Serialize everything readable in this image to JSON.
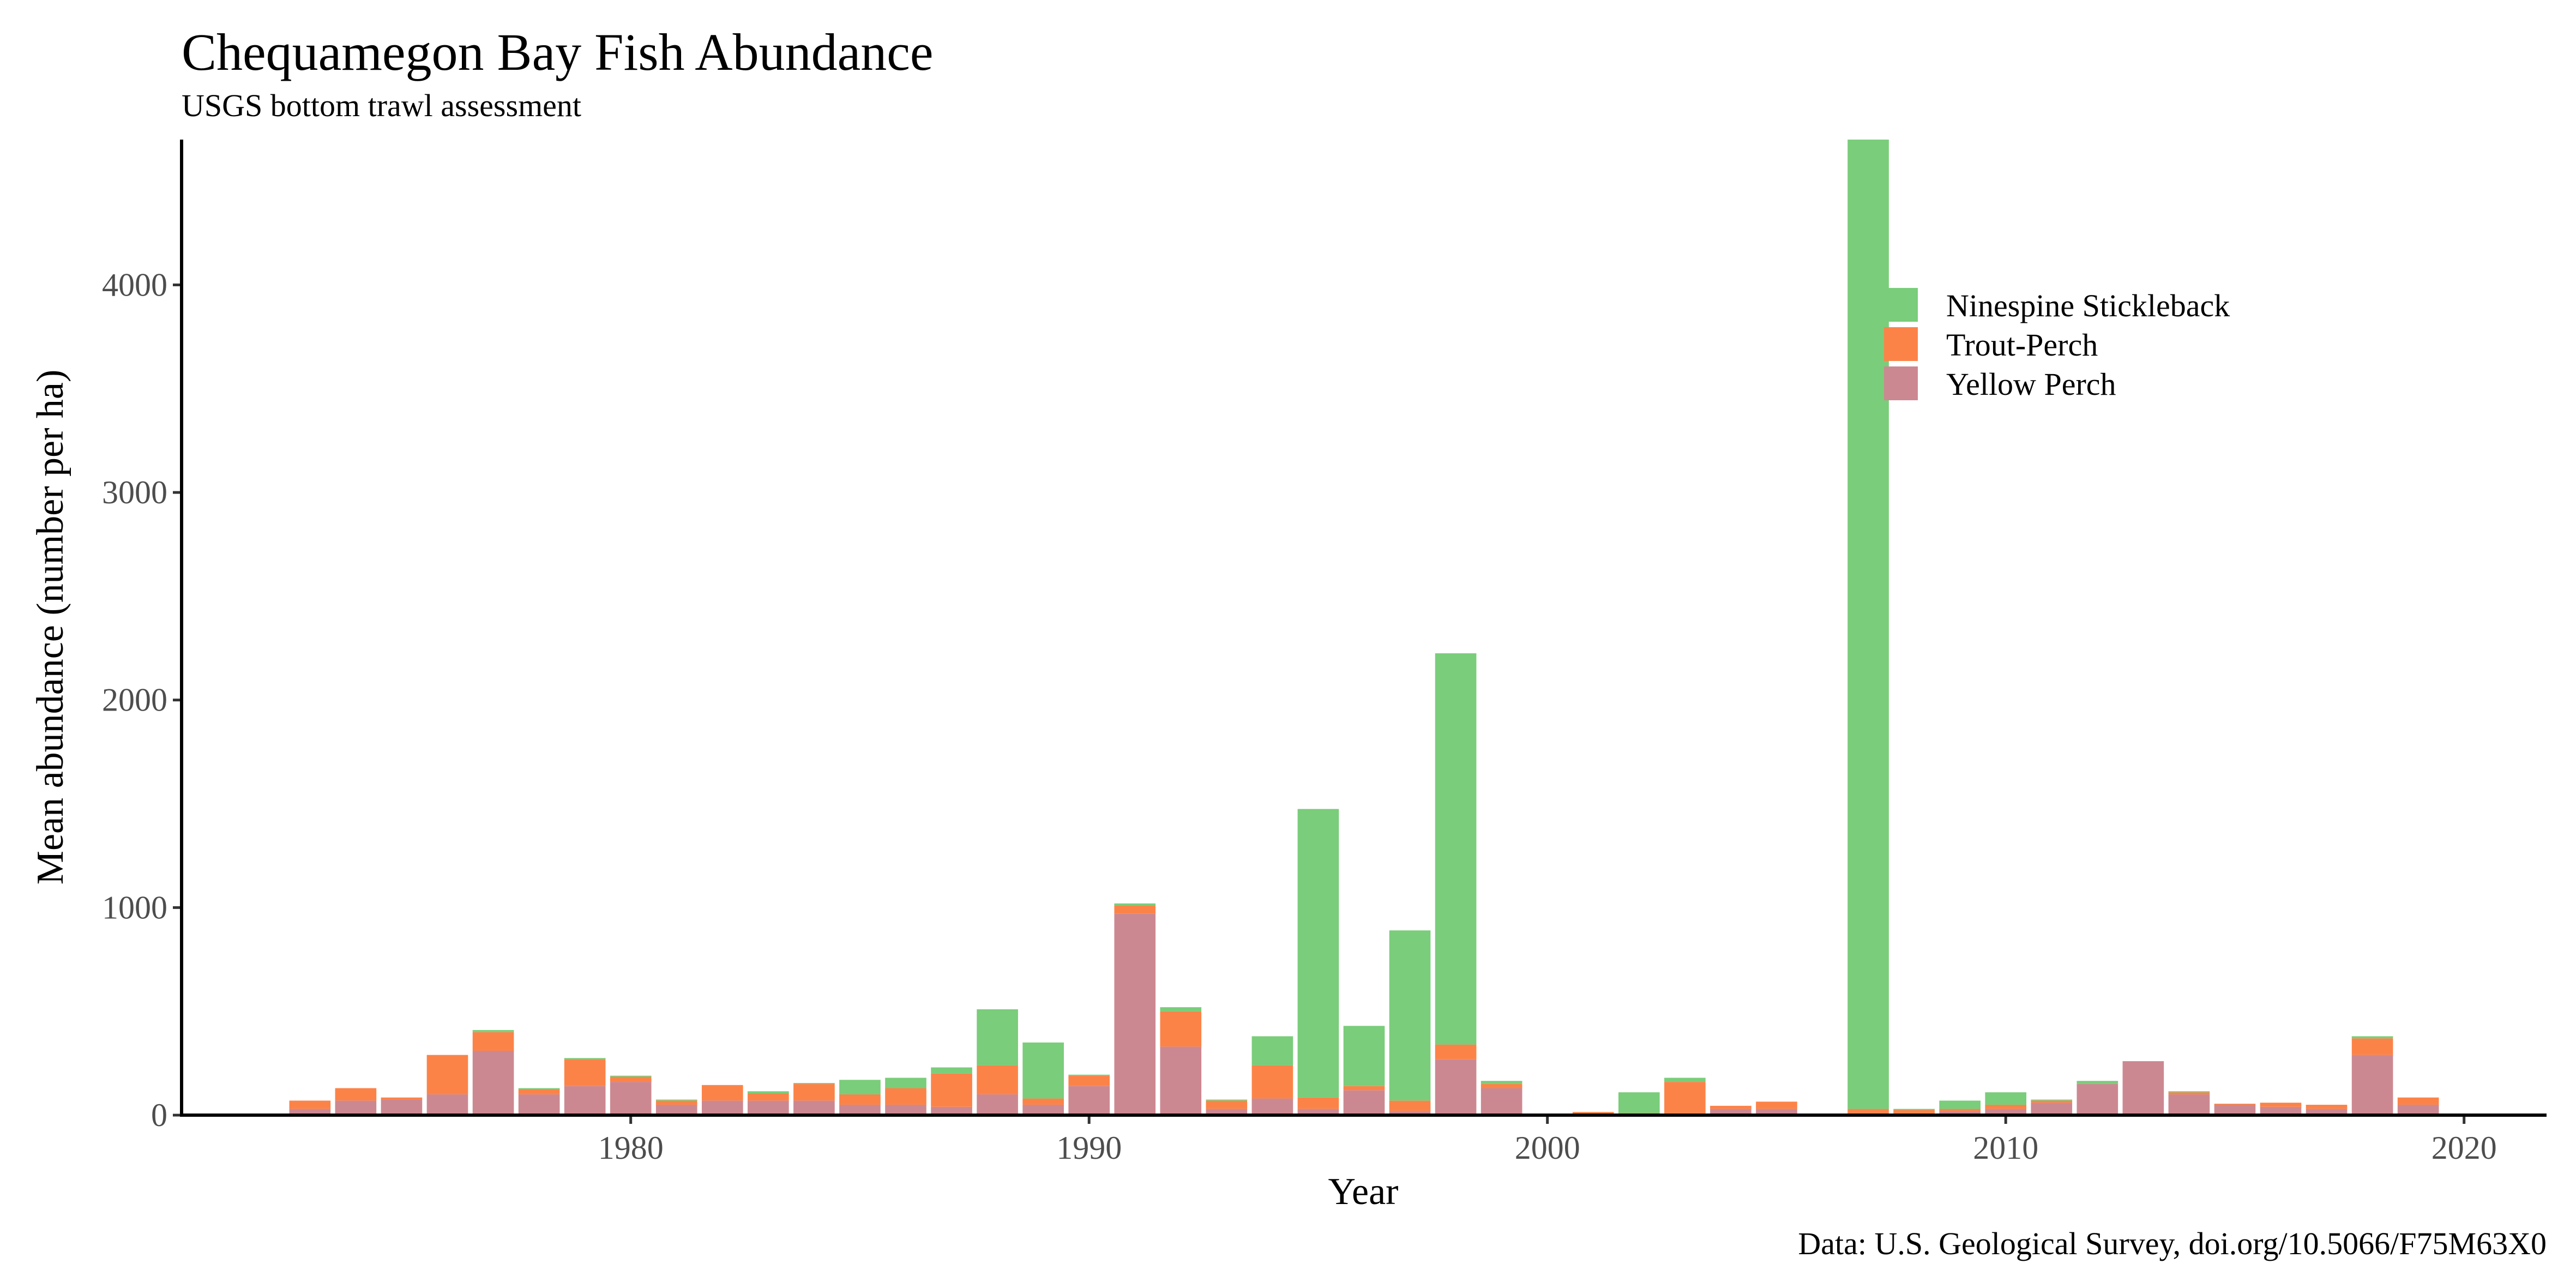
{
  "chart_data": {
    "type": "bar",
    "stacked": true,
    "title": "Chequamegon Bay Fish Abundance",
    "subtitle": "USGS bottom trawl assessment",
    "xlabel": "Year",
    "ylabel": "Mean abundance (number per ha)",
    "caption": "Data: U.S. Geological Survey, doi.org/10.5066/F75M63X0",
    "xlim": [
      1970.2,
      2021.8
    ],
    "ylim": [
      0,
      4700
    ],
    "xticks": [
      1980,
      1990,
      2000,
      2010,
      2020
    ],
    "yticks": [
      0,
      1000,
      2000,
      3000,
      4000
    ],
    "grid": false,
    "legend_position": "top-right",
    "x": [
      1973,
      1974,
      1975,
      1976,
      1977,
      1978,
      1979,
      1980,
      1981,
      1982,
      1983,
      1984,
      1985,
      1986,
      1987,
      1988,
      1989,
      1990,
      1991,
      1992,
      1993,
      1994,
      1995,
      1996,
      1997,
      1998,
      1999,
      2001,
      2002,
      2003,
      2004,
      2005,
      2007,
      2008,
      2009,
      2010,
      2011,
      2012,
      2013,
      2014,
      2015,
      2016,
      2017,
      2018,
      2019
    ],
    "series": [
      {
        "name": "Yellow Perch",
        "color": "#CC8891",
        "values": [
          30,
          70,
          75,
          100,
          310,
          100,
          140,
          160,
          50,
          70,
          70,
          70,
          50,
          50,
          40,
          100,
          50,
          140,
          970,
          330,
          30,
          80,
          30,
          120,
          20,
          270,
          130,
          3,
          5,
          10,
          30,
          30,
          10,
          10,
          20,
          30,
          60,
          150,
          260,
          100,
          50,
          40,
          30,
          290,
          50
        ]
      },
      {
        "name": "Trout-Perch",
        "color": "#FC8348",
        "values": [
          40,
          60,
          10,
          190,
          90,
          25,
          130,
          25,
          20,
          75,
          35,
          80,
          50,
          80,
          160,
          140,
          30,
          50,
          40,
          170,
          40,
          160,
          55,
          20,
          50,
          70,
          20,
          12,
          5,
          150,
          15,
          35,
          20,
          15,
          10,
          20,
          10,
          0,
          0,
          10,
          5,
          20,
          20,
          80,
          35
        ]
      },
      {
        "name": "Ninespine Stickleback",
        "color": "#7ACD7A",
        "values": [
          0,
          0,
          0,
          0,
          10,
          5,
          5,
          5,
          5,
          0,
          10,
          5,
          70,
          50,
          30,
          270,
          270,
          5,
          10,
          20,
          5,
          140,
          1390,
          290,
          820,
          1885,
          15,
          0,
          100,
          20,
          0,
          0,
          4670,
          5,
          40,
          60,
          5,
          15,
          0,
          5,
          0,
          0,
          0,
          10,
          0
        ]
      }
    ]
  }
}
